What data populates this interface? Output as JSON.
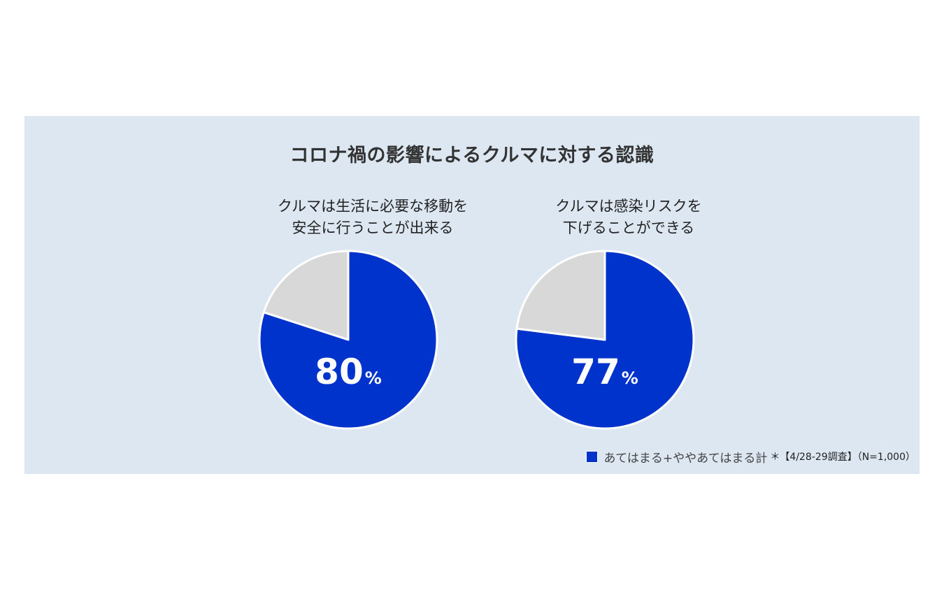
{
  "colors": {
    "panel_bg": "#dce7f2",
    "accent": "#0033cc",
    "rest": "#d8d8d8"
  },
  "title": "コロナ禍の影響によるクルマに対する認識",
  "legend": {
    "label": "あてはまる+ややあてはまる計",
    "note": "＊【4/28-29調査】（N=1,000）"
  },
  "chart_data": [
    {
      "type": "pie",
      "title_lines": [
        "クルマは生活に必要な移動を",
        "安全に行うことが出来る"
      ],
      "slices": [
        {
          "label": "あてはまる+ややあてはまる計",
          "value": 80,
          "color": "#0033cc"
        },
        {
          "label": "",
          "value": 20,
          "color": "#d8d8d8"
        }
      ],
      "data_label": {
        "value": "80",
        "unit": "%"
      }
    },
    {
      "type": "pie",
      "title_lines": [
        "クルマは感染リスクを",
        "下げることができる"
      ],
      "slices": [
        {
          "label": "あてはまる+ややあてはまる計",
          "value": 77,
          "color": "#0033cc"
        },
        {
          "label": "",
          "value": 23,
          "color": "#d8d8d8"
        }
      ],
      "data_label": {
        "value": "77",
        "unit": "%"
      }
    }
  ]
}
